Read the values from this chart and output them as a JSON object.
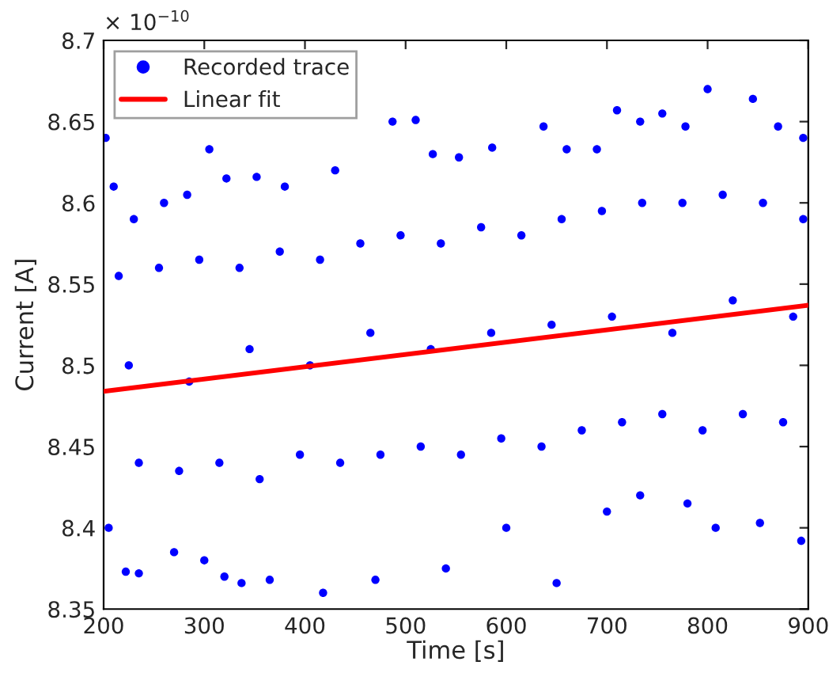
{
  "chart_data": {
    "type": "scatter",
    "xlabel": "Time [s]",
    "ylabel": "Current [A]",
    "annotations": [
      "× 10$^{−10}$"
    ],
    "xlim": [
      200,
      900
    ],
    "xticks": [
      200,
      300,
      400,
      500,
      600,
      700,
      800,
      900
    ],
    "ylim": [
      8.35,
      8.7
    ],
    "yticks": [
      8.35,
      8.4,
      8.45,
      8.5,
      8.55,
      8.6,
      8.65,
      8.7
    ],
    "grid": false,
    "legend": "top left",
    "series": [
      {
        "name": "Recorded trace",
        "marker": "circle",
        "color": "#0000ff",
        "x": [
          202,
          210,
          230,
          260,
          283,
          305,
          322,
          352,
          380,
          430,
          487,
          510,
          527,
          553,
          586,
          637,
          660,
          690,
          710,
          733,
          755,
          778,
          800,
          845,
          870,
          895,
          205,
          222,
          235,
          270,
          300,
          320,
          337,
          365,
          418,
          470,
          540,
          600,
          650,
          700,
          733,
          780,
          808,
          852,
          893,
          215,
          255,
          295,
          335,
          375,
          415,
          455,
          495,
          535,
          575,
          615,
          655,
          695,
          735,
          775,
          815,
          855,
          895,
          235,
          275,
          315,
          355,
          395,
          435,
          475,
          515,
          555,
          595,
          635,
          675,
          715,
          755,
          795,
          835,
          875,
          225,
          285,
          345,
          405,
          465,
          525,
          585,
          645,
          705,
          765,
          825,
          885
        ],
        "values": [
          8.64,
          8.61,
          8.59,
          8.6,
          8.605,
          8.633,
          8.615,
          8.616,
          8.61,
          8.62,
          8.65,
          8.651,
          8.63,
          8.628,
          8.634,
          8.647,
          8.633,
          8.633,
          8.657,
          8.65,
          8.655,
          8.647,
          8.67,
          8.664,
          8.647,
          8.64,
          8.4,
          8.373,
          8.372,
          8.385,
          8.38,
          8.37,
          8.366,
          8.368,
          8.36,
          8.368,
          8.375,
          8.4,
          8.366,
          8.41,
          8.42,
          8.415,
          8.4,
          8.403,
          8.392,
          8.555,
          8.56,
          8.565,
          8.56,
          8.57,
          8.565,
          8.575,
          8.58,
          8.575,
          8.585,
          8.58,
          8.59,
          8.595,
          8.6,
          8.6,
          8.605,
          8.6,
          8.59,
          8.44,
          8.435,
          8.44,
          8.43,
          8.445,
          8.44,
          8.445,
          8.45,
          8.445,
          8.455,
          8.45,
          8.46,
          8.465,
          8.47,
          8.46,
          8.47,
          8.465,
          8.5,
          8.49,
          8.51,
          8.5,
          8.52,
          8.51,
          8.52,
          8.525,
          8.53,
          8.52,
          8.54,
          8.53
        ]
      },
      {
        "name": "Linear fit",
        "type": "line",
        "marker": "none",
        "line_style": "solid",
        "color": "#ff0000",
        "x": [
          200,
          900
        ],
        "values": [
          8.484,
          8.537
        ]
      }
    ]
  }
}
